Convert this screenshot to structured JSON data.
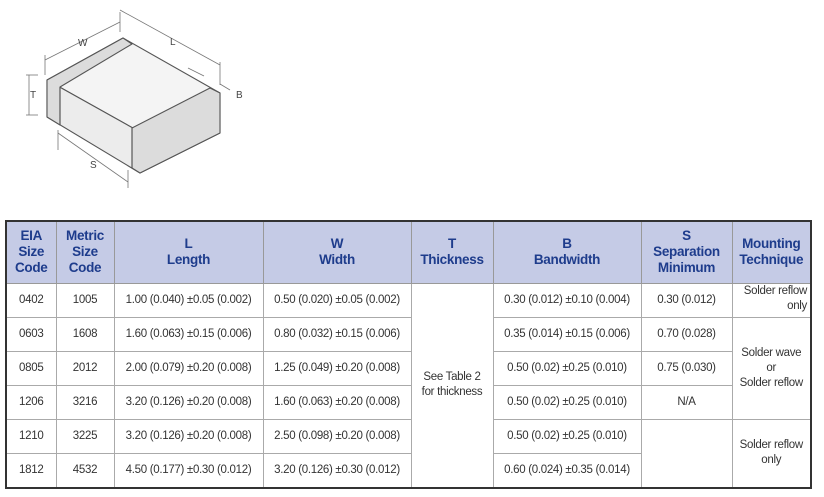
{
  "diagram": {
    "labels": {
      "w": "W",
      "l": "L",
      "t": "T",
      "b": "B",
      "s": "S"
    }
  },
  "table": {
    "headers": [
      {
        "top": "EIA",
        "mid": "Size",
        "bot": "Code"
      },
      {
        "top": "Metric",
        "mid": "Size",
        "bot": "Code"
      },
      {
        "top": "L",
        "mid": "Length"
      },
      {
        "top": "W",
        "mid": "Width"
      },
      {
        "top": "T",
        "mid": "Thickness"
      },
      {
        "top": "B",
        "mid": "Bandwidth"
      },
      {
        "top": "S",
        "mid": "Separation",
        "bot": "Minimum"
      },
      {
        "top": "Mounting",
        "mid": "Technique"
      }
    ],
    "thickness_note": {
      "line1": "See Table 2",
      "line2": "for thickness"
    },
    "mounting": [
      {
        "line1": "Solder reflow",
        "line2": "only"
      },
      {
        "line1": "Solder wave",
        "line2": "or",
        "line3": "Solder reflow"
      },
      {
        "line1": "Solder reflow",
        "line2": "only"
      }
    ],
    "rows": [
      {
        "eia": "0402",
        "metric": "1005",
        "l": "1.00 (0.040) ±0.05 (0.002)",
        "w": "0.50 (0.020) ±0.05 (0.002)",
        "b": "0.30 (0.012) ±0.10 (0.004)",
        "s": "0.30 (0.012)"
      },
      {
        "eia": "0603",
        "metric": "1608",
        "l": "1.60 (0.063) ±0.15 (0.006)",
        "w": "0.80 (0.032) ±0.15 (0.006)",
        "b": "0.35 (0.014) ±0.15 (0.006)",
        "s": "0.70 (0.028)"
      },
      {
        "eia": "0805",
        "metric": "2012",
        "l": "2.00 (0.079) ±0.20 (0.008)",
        "w": "1.25 (0.049) ±0.20 (0.008)",
        "b": "0.50 (0.02) ±0.25 (0.010)",
        "s": "0.75 (0.030)"
      },
      {
        "eia": "1206",
        "metric": "3216",
        "l": "3.20 (0.126) ±0.20 (0.008)",
        "w": "1.60 (0.063) ±0.20 (0.008)",
        "b": "0.50 (0.02) ±0.25 (0.010)",
        "s": "N/A"
      },
      {
        "eia": "1210",
        "metric": "3225",
        "l": "3.20 (0.126) ±0.20 (0.008)",
        "w": "2.50 (0.098) ±0.20 (0.008)",
        "b": "0.50 (0.02) ±0.25 (0.010)",
        "s": ""
      },
      {
        "eia": "1812",
        "metric": "4532",
        "l": "4.50 (0.177) ±0.30 (0.012)",
        "w": "3.20 (0.126) ±0.30 (0.012)",
        "b": "0.60 (0.024) ±0.35 (0.014)",
        "s": ""
      }
    ]
  }
}
